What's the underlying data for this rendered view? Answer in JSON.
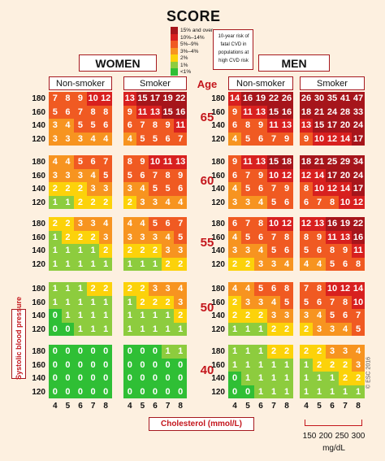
{
  "logo": "SCORE",
  "legend": {
    "items": [
      {
        "label": "15% and over",
        "color": "#a6151b"
      },
      {
        "label": "10%–14%",
        "color": "#d8201f"
      },
      {
        "label": "5%–9%",
        "color": "#f05a22"
      },
      {
        "label": "3%–4%",
        "color": "#f79420"
      },
      {
        "label": "2%",
        "color": "#fcd20a"
      },
      {
        "label": "1%",
        "color": "#8dcc3e"
      },
      {
        "label": "<1%",
        "color": "#2fbf35"
      }
    ],
    "description": "10-year risk of fatal CVD in populations at high CVD risk"
  },
  "headers": {
    "women": "WOMEN",
    "men": "MEN",
    "non_smoker": "Non-smoker",
    "smoker": "Smoker",
    "age": "Age"
  },
  "axis": {
    "y_label": "Systolic blood pressure",
    "x_label": "Cholesterol (mmol/L)",
    "bp_ticks": [
      "180",
      "160",
      "140",
      "120"
    ],
    "chol_ticks": [
      "4",
      "5",
      "6",
      "7",
      "8"
    ],
    "mgdl_ticks": [
      "150",
      "200",
      "250",
      "300"
    ],
    "mgdl_unit": "mg/dL"
  },
  "copyright": "© ESC 2016",
  "chart_data": {
    "type": "heatmap",
    "title": "SCORE",
    "xlabel": "Cholesterol (mmol/L)",
    "ylabel": "Systolic blood pressure",
    "x": [
      4,
      5,
      6,
      7,
      8
    ],
    "y": [
      180,
      160,
      140,
      120
    ],
    "ages": [
      "65",
      "60",
      "55",
      "50",
      "40"
    ],
    "panels": [
      {
        "sex": "WOMEN",
        "group": "Non-smoker",
        "values": [
          [
            [
              7,
              8,
              9,
              10,
              12
            ],
            [
              5,
              6,
              7,
              8,
              8
            ],
            [
              3,
              4,
              5,
              5,
              6
            ],
            [
              3,
              3,
              3,
              4,
              4
            ]
          ],
          [
            [
              4,
              4,
              5,
              6,
              7
            ],
            [
              3,
              3,
              3,
              4,
              5
            ],
            [
              2,
              2,
              2,
              3,
              3
            ],
            [
              1,
              1,
              2,
              2,
              2
            ]
          ],
          [
            [
              2,
              2,
              3,
              3,
              4
            ],
            [
              1,
              2,
              2,
              2,
              3
            ],
            [
              1,
              1,
              1,
              1,
              2
            ],
            [
              1,
              1,
              1,
              1,
              1
            ]
          ],
          [
            [
              1,
              1,
              1,
              2,
              2
            ],
            [
              1,
              1,
              1,
              1,
              1
            ],
            [
              0,
              1,
              1,
              1,
              1
            ],
            [
              0,
              0,
              1,
              1,
              1
            ]
          ],
          [
            [
              0,
              0,
              0,
              0,
              0
            ],
            [
              0,
              0,
              0,
              0,
              0
            ],
            [
              0,
              0,
              0,
              0,
              0
            ],
            [
              0,
              0,
              0,
              0,
              0
            ]
          ]
        ]
      },
      {
        "sex": "WOMEN",
        "group": "Smoker",
        "values": [
          [
            [
              13,
              15,
              17,
              19,
              22
            ],
            [
              9,
              11,
              13,
              15,
              16
            ],
            [
              6,
              7,
              8,
              9,
              11
            ],
            [
              4,
              5,
              5,
              6,
              7
            ]
          ],
          [
            [
              8,
              9,
              10,
              11,
              13
            ],
            [
              5,
              6,
              7,
              8,
              9
            ],
            [
              3,
              4,
              5,
              5,
              6
            ],
            [
              2,
              3,
              3,
              4,
              4
            ]
          ],
          [
            [
              4,
              4,
              5,
              6,
              7
            ],
            [
              3,
              3,
              3,
              4,
              5
            ],
            [
              2,
              2,
              2,
              3,
              3
            ],
            [
              1,
              1,
              1,
              2,
              2
            ]
          ],
          [
            [
              2,
              2,
              3,
              3,
              4
            ],
            [
              1,
              2,
              2,
              2,
              3
            ],
            [
              1,
              1,
              1,
              1,
              2
            ],
            [
              1,
              1,
              1,
              1,
              1
            ]
          ],
          [
            [
              0,
              0,
              0,
              1,
              1
            ],
            [
              0,
              0,
              0,
              0,
              0
            ],
            [
              0,
              0,
              0,
              0,
              0
            ],
            [
              0,
              0,
              0,
              0,
              0
            ]
          ]
        ]
      },
      {
        "sex": "MEN",
        "group": "Non-smoker",
        "values": [
          [
            [
              14,
              16,
              19,
              22,
              26
            ],
            [
              9,
              11,
              13,
              15,
              16
            ],
            [
              6,
              8,
              9,
              11,
              13
            ],
            [
              4,
              5,
              6,
              7,
              9
            ]
          ],
          [
            [
              9,
              11,
              13,
              15,
              18
            ],
            [
              6,
              7,
              9,
              10,
              12
            ],
            [
              4,
              5,
              6,
              7,
              9
            ],
            [
              3,
              3,
              4,
              5,
              6
            ]
          ],
          [
            [
              6,
              7,
              8,
              10,
              12
            ],
            [
              4,
              5,
              6,
              7,
              8
            ],
            [
              3,
              3,
              4,
              5,
              6
            ],
            [
              2,
              2,
              3,
              3,
              4
            ]
          ],
          [
            [
              4,
              4,
              5,
              6,
              8
            ],
            [
              2,
              3,
              3,
              4,
              5
            ],
            [
              2,
              2,
              2,
              3,
              3
            ],
            [
              1,
              1,
              1,
              2,
              2
            ]
          ],
          [
            [
              1,
              1,
              1,
              2,
              2
            ],
            [
              1,
              1,
              1,
              1,
              1
            ],
            [
              0,
              1,
              1,
              1,
              1
            ],
            [
              0,
              0,
              1,
              1,
              1
            ]
          ]
        ]
      },
      {
        "sex": "MEN",
        "group": "Smoker",
        "values": [
          [
            [
              26,
              30,
              35,
              41,
              47
            ],
            [
              18,
              21,
              24,
              28,
              33
            ],
            [
              13,
              15,
              17,
              20,
              24
            ],
            [
              9,
              10,
              12,
              14,
              17
            ]
          ],
          [
            [
              18,
              21,
              25,
              29,
              34
            ],
            [
              12,
              14,
              17,
              20,
              24
            ],
            [
              8,
              10,
              12,
              14,
              17
            ],
            [
              6,
              7,
              8,
              10,
              12
            ]
          ],
          [
            [
              12,
              13,
              16,
              19,
              22
            ],
            [
              8,
              9,
              11,
              13,
              16
            ],
            [
              5,
              6,
              8,
              9,
              11
            ],
            [
              4,
              4,
              5,
              6,
              8
            ]
          ],
          [
            [
              7,
              8,
              10,
              12,
              14
            ],
            [
              5,
              6,
              7,
              8,
              10
            ],
            [
              3,
              4,
              5,
              6,
              7
            ],
            [
              2,
              3,
              3,
              4,
              5
            ]
          ],
          [
            [
              2,
              2,
              3,
              3,
              4
            ],
            [
              1,
              2,
              2,
              2,
              3
            ],
            [
              1,
              1,
              1,
              2,
              2
            ],
            [
              1,
              1,
              1,
              1,
              1
            ]
          ]
        ]
      }
    ]
  }
}
